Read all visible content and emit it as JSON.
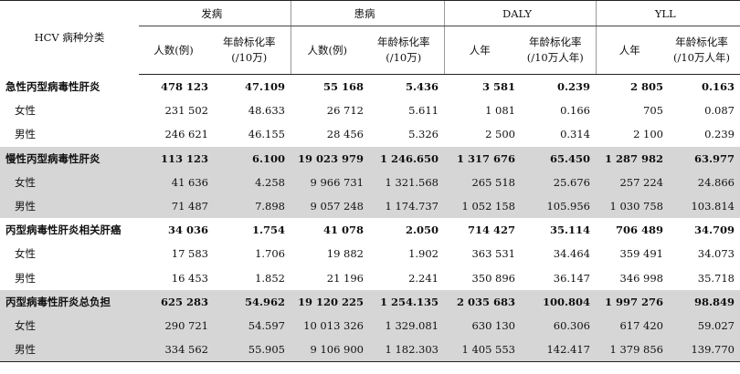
{
  "header": {
    "corner": "HCV 病种分类",
    "groups": [
      "发病",
      "患病",
      "DALY",
      "YLL"
    ],
    "subs": [
      "人数(例)",
      "年龄标化率\n(/10万)",
      "人数(例)",
      "年龄标化率\n(/10万)",
      "人年",
      "年龄标化率\n(/10万人年)",
      "人年",
      "年龄标化率\n(/10万人年)"
    ]
  },
  "rows": [
    {
      "label": "急性丙型病毒性肝炎",
      "main": true,
      "shade": false,
      "cells": [
        "478 123",
        "47.109",
        "55 168",
        "5.436",
        "3 581",
        "0.239",
        "2 805",
        "0.163"
      ]
    },
    {
      "label": "女性",
      "main": false,
      "shade": false,
      "cells": [
        "231 502",
        "48.633",
        "26 712",
        "5.611",
        "1 081",
        "0.166",
        "705",
        "0.087"
      ]
    },
    {
      "label": "男性",
      "main": false,
      "shade": false,
      "cells": [
        "246 621",
        "46.155",
        "28 456",
        "5.326",
        "2 500",
        "0.314",
        "2 100",
        "0.239"
      ]
    },
    {
      "label": "慢性丙型病毒性肝炎",
      "main": true,
      "shade": true,
      "cells": [
        "113 123",
        "6.100",
        "19 023 979",
        "1 246.650",
        "1 317 676",
        "65.450",
        "1 287 982",
        "63.977"
      ]
    },
    {
      "label": "女性",
      "main": false,
      "shade": true,
      "cells": [
        "41 636",
        "4.258",
        "9 966 731",
        "1 321.568",
        "265 518",
        "25.676",
        "257 224",
        "24.866"
      ]
    },
    {
      "label": "男性",
      "main": false,
      "shade": true,
      "cells": [
        "71 487",
        "7.898",
        "9 057 248",
        "1 174.737",
        "1 052 158",
        "105.956",
        "1 030 758",
        "103.814"
      ]
    },
    {
      "label": "丙型病毒性肝炎相关肝癌",
      "main": true,
      "shade": false,
      "cells": [
        "34 036",
        "1.754",
        "41 078",
        "2.050",
        "714 427",
        "35.114",
        "706 489",
        "34.709"
      ]
    },
    {
      "label": "女性",
      "main": false,
      "shade": false,
      "cells": [
        "17 583",
        "1.706",
        "19 882",
        "1.902",
        "363 531",
        "34.464",
        "359 491",
        "34.073"
      ]
    },
    {
      "label": "男性",
      "main": false,
      "shade": false,
      "cells": [
        "16 453",
        "1.852",
        "21 196",
        "2.241",
        "350 896",
        "36.147",
        "346 998",
        "35.718"
      ]
    },
    {
      "label": "丙型病毒性肝炎总负担",
      "main": true,
      "shade": true,
      "cells": [
        "625 283",
        "54.962",
        "19 120 225",
        "1 254.135",
        "2 035 683",
        "100.804",
        "1 997 276",
        "98.849"
      ]
    },
    {
      "label": "女性",
      "main": false,
      "shade": true,
      "cells": [
        "290 721",
        "54.597",
        "10 013 326",
        "1 329.081",
        "630 130",
        "60.306",
        "617 420",
        "59.027"
      ]
    },
    {
      "label": "男性",
      "main": false,
      "shade": true,
      "cells": [
        "334 562",
        "55.905",
        "9 106 900",
        "1 182.303",
        "1 405 553",
        "142.417",
        "1 379 856",
        "139.770"
      ]
    }
  ]
}
